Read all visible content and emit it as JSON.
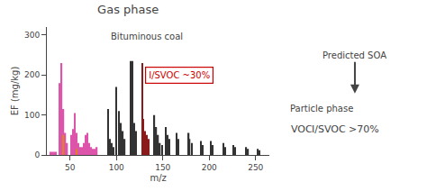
{
  "chart_data": {
    "type": "bar",
    "title": "Gas phase",
    "subtitle": "Bituminous coal",
    "x_label": "m/z",
    "y_label": "EF (mg/kg)",
    "xlim": [
      25,
      265
    ],
    "ylim": [
      0,
      320
    ],
    "xticks": [
      50,
      100,
      150,
      200,
      250
    ],
    "yticks": [
      0,
      100,
      200,
      300
    ],
    "grid": false,
    "annotations": [
      "I/SVOC ~30%",
      "Predicted SOA",
      "Particle phase",
      "VOC",
      "I/SVOC >70%"
    ],
    "series": [
      {
        "color": "#dd55aa",
        "x": [
          29,
          31,
          33,
          35,
          39,
          41,
          43,
          45,
          47,
          51,
          53,
          55,
          57,
          59,
          61,
          63,
          65,
          67,
          69,
          71,
          73,
          75,
          77,
          79
        ],
        "values": [
          8,
          8,
          8,
          8,
          180,
          230,
          115,
          55,
          30,
          50,
          65,
          105,
          55,
          30,
          20,
          20,
          30,
          50,
          55,
          30,
          20,
          15,
          15,
          20
        ]
      },
      {
        "color": "#e08020",
        "x": [
          43,
          57
        ],
        "values": [
          50,
          15
        ]
      },
      {
        "colors": [
          "#333333",
          "#333333",
          "#333333",
          "#333333",
          "#333333",
          "#333333",
          "#333333",
          "#333333",
          "#333333",
          "#333333",
          "#333333",
          "#333333",
          "#333333",
          "#8b1a1a",
          "#8b1a1a",
          "#8b1a1a",
          "#8b1a1a",
          "#8b1a1a",
          "#333333",
          "#333333",
          "#333333",
          "#333333",
          "#333333",
          "#333333",
          "#333333",
          "#333333",
          "#333333",
          "#333333",
          "#333333",
          "#333333",
          "#333333",
          "#333333",
          "#333333",
          "#333333",
          "#333333",
          "#333333",
          "#333333",
          "#333333",
          "#333333",
          "#333333",
          "#333333",
          "#333333",
          "#333333"
        ],
        "x": [
          91,
          93,
          95,
          97,
          100,
          103,
          105,
          107,
          109,
          115,
          117,
          119,
          121,
          128,
          129,
          131,
          133,
          135,
          141,
          143,
          145,
          147,
          149,
          153,
          155,
          157,
          165,
          167,
          178,
          179,
          181,
          191,
          193,
          202,
          204,
          215,
          217,
          226,
          228,
          240,
          242,
          252,
          254
        ],
        "values": [
          115,
          40,
          30,
          20,
          170,
          110,
          80,
          60,
          40,
          235,
          235,
          80,
          60,
          230,
          90,
          60,
          50,
          40,
          100,
          70,
          50,
          30,
          25,
          70,
          50,
          40,
          55,
          40,
          55,
          40,
          30,
          35,
          25,
          35,
          25,
          30,
          20,
          25,
          20,
          20,
          15,
          15,
          12
        ]
      }
    ]
  }
}
